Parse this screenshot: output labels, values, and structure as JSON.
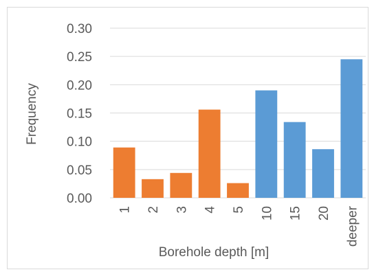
{
  "chart_data": {
    "type": "bar",
    "categories": [
      "1",
      "2",
      "3",
      "4",
      "5",
      "10",
      "15",
      "20",
      "deeper"
    ],
    "values": [
      0.089,
      0.033,
      0.044,
      0.156,
      0.026,
      0.19,
      0.134,
      0.086,
      0.245
    ],
    "bar_colors": [
      "#ED7D31",
      "#ED7D31",
      "#ED7D31",
      "#ED7D31",
      "#ED7D31",
      "#5B9BD5",
      "#5B9BD5",
      "#5B9BD5",
      "#5B9BD5"
    ],
    "xlabel": "Borehole depth [m]",
    "ylabel": "Frequency",
    "ylim": [
      0,
      0.3
    ],
    "yticks": [
      "0.00",
      "0.05",
      "0.10",
      "0.15",
      "0.20",
      "0.25",
      "0.30"
    ],
    "grid": true,
    "legend": false
  }
}
